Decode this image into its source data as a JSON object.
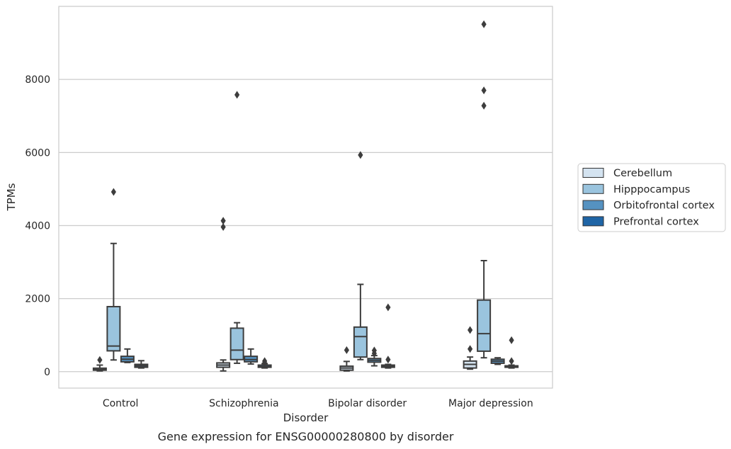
{
  "chart_data": {
    "type": "box",
    "caption": "Gene expression for ENSG00000280800 by disorder",
    "xlabel": "Disorder",
    "ylabel": "TPMs",
    "ylim": [
      -450,
      10000
    ],
    "yticks": [
      0,
      2000,
      4000,
      6000,
      8000
    ],
    "grid": "horizontal",
    "legend_position": "right",
    "categories": [
      "Control",
      "Schizophrenia",
      "Bipolar disorder",
      "Major depression"
    ],
    "series": [
      {
        "name": "Cerebellum",
        "color": "#d4e3f0",
        "boxes": [
          {
            "whislo": 20,
            "q1": 40,
            "med": 60,
            "q3": 95,
            "whishi": 180,
            "fliers": [
              320
            ]
          },
          {
            "whislo": 20,
            "q1": 120,
            "med": 180,
            "q3": 240,
            "whishi": 320,
            "fliers": [
              3960,
              4130
            ]
          },
          {
            "whislo": 20,
            "q1": 40,
            "med": 100,
            "q3": 150,
            "whishi": 280,
            "fliers": [
              590
            ]
          },
          {
            "whislo": 70,
            "q1": 100,
            "med": 200,
            "q3": 290,
            "whishi": 400,
            "fliers": [
              620,
              1140
            ]
          }
        ]
      },
      {
        "name": "Hipppocampus",
        "color": "#9ac4de",
        "boxes": [
          {
            "whislo": 320,
            "q1": 570,
            "med": 700,
            "q3": 1780,
            "whishi": 3510,
            "fliers": [
              4920
            ]
          },
          {
            "whislo": 230,
            "q1": 330,
            "med": 590,
            "q3": 1190,
            "whishi": 1340,
            "fliers": [
              7580
            ]
          },
          {
            "whislo": 330,
            "q1": 400,
            "med": 960,
            "q3": 1220,
            "whishi": 2390,
            "fliers": [
              5930
            ]
          },
          {
            "whislo": 380,
            "q1": 560,
            "med": 1040,
            "q3": 1960,
            "whishi": 3040,
            "fliers": [
              7280,
              7700,
              9510
            ]
          }
        ]
      },
      {
        "name": "Orbitofrontal cortex",
        "color": "#5592c1",
        "boxes": [
          {
            "whislo": 250,
            "q1": 270,
            "med": 340,
            "q3": 420,
            "whishi": 620,
            "fliers": []
          },
          {
            "whislo": 210,
            "q1": 270,
            "med": 330,
            "q3": 420,
            "whishi": 620,
            "fliers": []
          },
          {
            "whislo": 160,
            "q1": 260,
            "med": 310,
            "q3": 360,
            "whishi": 440,
            "fliers": [
              500,
              580
            ]
          },
          {
            "whislo": 200,
            "q1": 230,
            "med": 290,
            "q3": 340,
            "whishi": 380,
            "fliers": []
          }
        ]
      },
      {
        "name": "Prefrontal cortex",
        "color": "#1f65a6",
        "boxes": [
          {
            "whislo": 100,
            "q1": 120,
            "med": 160,
            "q3": 200,
            "whishi": 300,
            "fliers": []
          },
          {
            "whislo": 100,
            "q1": 120,
            "med": 140,
            "q3": 180,
            "whishi": 220,
            "fliers": [
              240,
              290
            ]
          },
          {
            "whislo": 100,
            "q1": 120,
            "med": 150,
            "q3": 180,
            "whishi": 200,
            "fliers": [
              330,
              1760
            ]
          },
          {
            "whislo": 100,
            "q1": 120,
            "med": 140,
            "q3": 160,
            "whishi": 180,
            "fliers": [
              290,
              860
            ]
          }
        ]
      }
    ]
  }
}
